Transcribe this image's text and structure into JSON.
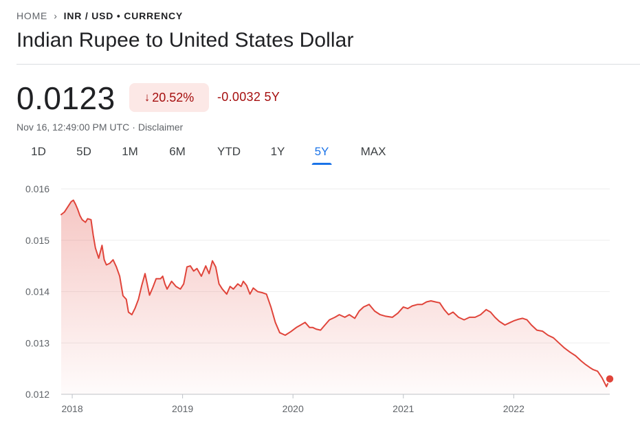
{
  "breadcrumb": {
    "home": "HOME",
    "current": "INR / USD • CURRENCY"
  },
  "title": "Indian Rupee to United States Dollar",
  "quote": {
    "price": "0.0123",
    "change_percent": "20.52%",
    "change_abs": "-0.0032 5Y",
    "timestamp": "Nov 16, 12:49:00 PM UTC",
    "disclaimer": "Disclaimer"
  },
  "tabs": [
    {
      "label": "1D",
      "active": false
    },
    {
      "label": "5D",
      "active": false
    },
    {
      "label": "1M",
      "active": false
    },
    {
      "label": "6M",
      "active": false
    },
    {
      "label": "YTD",
      "active": false
    },
    {
      "label": "1Y",
      "active": false
    },
    {
      "label": "5Y",
      "active": true
    },
    {
      "label": "MAX",
      "active": false
    }
  ],
  "colors": {
    "negative": "#a50e0e",
    "negative_bg": "#fce8e6",
    "line": "#e0443a",
    "accent": "#1a73e8"
  },
  "chart_data": {
    "type": "area",
    "title": "",
    "xlabel": "",
    "ylabel": "",
    "ylim": [
      0.012,
      0.016
    ],
    "y_ticks": [
      "0.016",
      "0.015",
      "0.014",
      "0.013",
      "0.012"
    ],
    "x_ticks": [
      "2018",
      "2019",
      "2020",
      "2021",
      "2022"
    ],
    "xlim": [
      2017.9,
      2022.87
    ],
    "grid": true,
    "legend": "none",
    "series": [
      {
        "x": [
          2017.9,
          2017.93,
          2017.96,
          2017.99,
          2018.01,
          2018.03,
          2018.05,
          2018.07,
          2018.09,
          2018.12,
          2018.14,
          2018.17,
          2018.19,
          2018.21,
          2018.24,
          2018.27,
          2018.29,
          2018.31,
          2018.34,
          2018.37,
          2018.4,
          2018.43,
          2018.46,
          2018.49,
          2018.51,
          2018.54,
          2018.57,
          2018.6,
          2018.63,
          2018.66,
          2018.7,
          2018.73,
          2018.76,
          2018.8,
          2018.82,
          2018.84,
          2018.86,
          2018.9,
          2018.94,
          2018.98,
          2019.01,
          2019.04,
          2019.07,
          2019.1,
          2019.13,
          2019.17,
          2019.21,
          2019.24,
          2019.27,
          2019.3,
          2019.33,
          2019.36,
          2019.4,
          2019.43,
          2019.46,
          2019.5,
          2019.53,
          2019.55,
          2019.58,
          2019.61,
          2019.64,
          2019.68,
          2019.72,
          2019.76,
          2019.8,
          2019.84,
          2019.88,
          2019.93,
          2019.98,
          2020.03,
          2020.07,
          2020.11,
          2020.15,
          2020.18,
          2020.21,
          2020.25,
          2020.29,
          2020.33,
          2020.38,
          2020.42,
          2020.47,
          2020.51,
          2020.56,
          2020.6,
          2020.64,
          2020.69,
          2020.74,
          2020.79,
          2020.84,
          2020.9,
          2020.95,
          2021.0,
          2021.04,
          2021.08,
          2021.13,
          2021.17,
          2021.21,
          2021.25,
          2021.29,
          2021.33,
          2021.37,
          2021.41,
          2021.45,
          2021.5,
          2021.55,
          2021.6,
          2021.65,
          2021.7,
          2021.75,
          2021.79,
          2021.83,
          2021.87,
          2021.92,
          2021.97,
          2022.0,
          2022.04,
          2022.08,
          2022.12,
          2022.16,
          2022.21,
          2022.26,
          2022.31,
          2022.36,
          2022.41,
          2022.46,
          2022.51,
          2022.56,
          2022.61,
          2022.65,
          2022.69,
          2022.72,
          2022.76,
          2022.8,
          2022.84,
          2022.87
        ],
        "values": [
          0.0155,
          0.01555,
          0.01565,
          0.01575,
          0.01578,
          0.0157,
          0.0156,
          0.01548,
          0.0154,
          0.01535,
          0.01542,
          0.0154,
          0.0151,
          0.01485,
          0.01465,
          0.0149,
          0.01462,
          0.01452,
          0.01455,
          0.01462,
          0.01448,
          0.0143,
          0.01392,
          0.01385,
          0.0136,
          0.01355,
          0.01368,
          0.01385,
          0.01412,
          0.01435,
          0.01393,
          0.01408,
          0.01425,
          0.01425,
          0.0143,
          0.01415,
          0.01405,
          0.0142,
          0.0141,
          0.01405,
          0.01415,
          0.01448,
          0.0145,
          0.0144,
          0.01445,
          0.0143,
          0.0145,
          0.01435,
          0.0146,
          0.01448,
          0.01415,
          0.01405,
          0.01395,
          0.0141,
          0.01405,
          0.01415,
          0.0141,
          0.0142,
          0.01412,
          0.01395,
          0.01407,
          0.014,
          0.01398,
          0.01395,
          0.0137,
          0.0134,
          0.0132,
          0.01315,
          0.01322,
          0.0133,
          0.01335,
          0.0134,
          0.0133,
          0.0133,
          0.01327,
          0.01325,
          0.01335,
          0.01345,
          0.0135,
          0.01355,
          0.0135,
          0.01355,
          0.01348,
          0.01362,
          0.0137,
          0.01375,
          0.01362,
          0.01355,
          0.01352,
          0.0135,
          0.01358,
          0.0137,
          0.01367,
          0.01372,
          0.01375,
          0.01375,
          0.0138,
          0.01382,
          0.0138,
          0.01378,
          0.01365,
          0.01355,
          0.0136,
          0.0135,
          0.01345,
          0.0135,
          0.0135,
          0.01355,
          0.01365,
          0.0136,
          0.0135,
          0.01342,
          0.01335,
          0.0134,
          0.01343,
          0.01346,
          0.01348,
          0.01345,
          0.01335,
          0.01325,
          0.01323,
          0.01315,
          0.0131,
          0.013,
          0.0129,
          0.01282,
          0.01275,
          0.01265,
          0.01258,
          0.01252,
          0.01248,
          0.01245,
          0.01232,
          0.01215,
          0.0123
        ]
      }
    ]
  }
}
